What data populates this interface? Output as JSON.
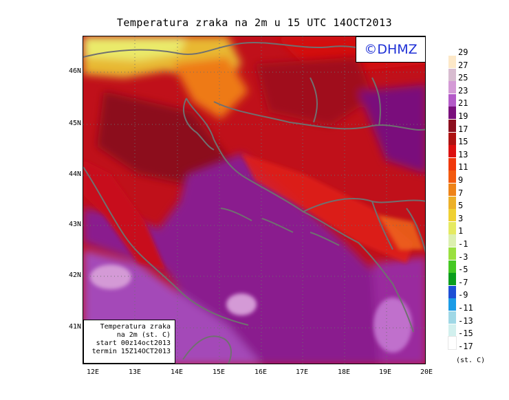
{
  "title": "Temperatura zraka na 2m u 15 UTC 14OCT2013",
  "logo": "©DHMZ",
  "info_box": {
    "line1": "Temperatura zraka",
    "line2": "na 2m (st. C)",
    "line3": "start 00z14oct2013",
    "line4": "termin 15Z14OCT2013"
  },
  "lat_ticks": [
    "46N",
    "45N",
    "44N",
    "43N",
    "42N",
    "41N"
  ],
  "lon_ticks": [
    "12E",
    "13E",
    "14E",
    "15E",
    "16E",
    "17E",
    "18E",
    "19E",
    "20E"
  ],
  "legend": {
    "labels": [
      "29",
      "27",
      "25",
      "23",
      "21",
      "19",
      "17",
      "15",
      "13",
      "11",
      "9",
      "7",
      "5",
      "3",
      "1",
      "-1",
      "-3",
      "-5",
      "-7",
      "-9",
      "-11",
      "-13",
      "-15",
      "-17"
    ],
    "colors": [
      "#fde8c8",
      "#d8bcd0",
      "#d49ad6",
      "#b45ac8",
      "#7a0f7c",
      "#8c0e1e",
      "#ae1212",
      "#dc0f0f",
      "#f0380c",
      "#f35a0f",
      "#ee8318",
      "#ecb029",
      "#efd033",
      "#e5ea62",
      "#dcf0b0",
      "#9ae040",
      "#44c823",
      "#0a9d1c",
      "#1c4fd5",
      "#1a9be6",
      "#a0d8e6",
      "#d2f0ee",
      "#ffffff"
    ],
    "unit": "(st. C)"
  },
  "colors": {
    "land_outline": "#707070",
    "grid": "#6e6e6e",
    "adriatic_sea": "#8a1a8e",
    "warm_land": "#c8101a",
    "hot_north": "#e6e65a",
    "logo_text": "#1d2fd6"
  }
}
